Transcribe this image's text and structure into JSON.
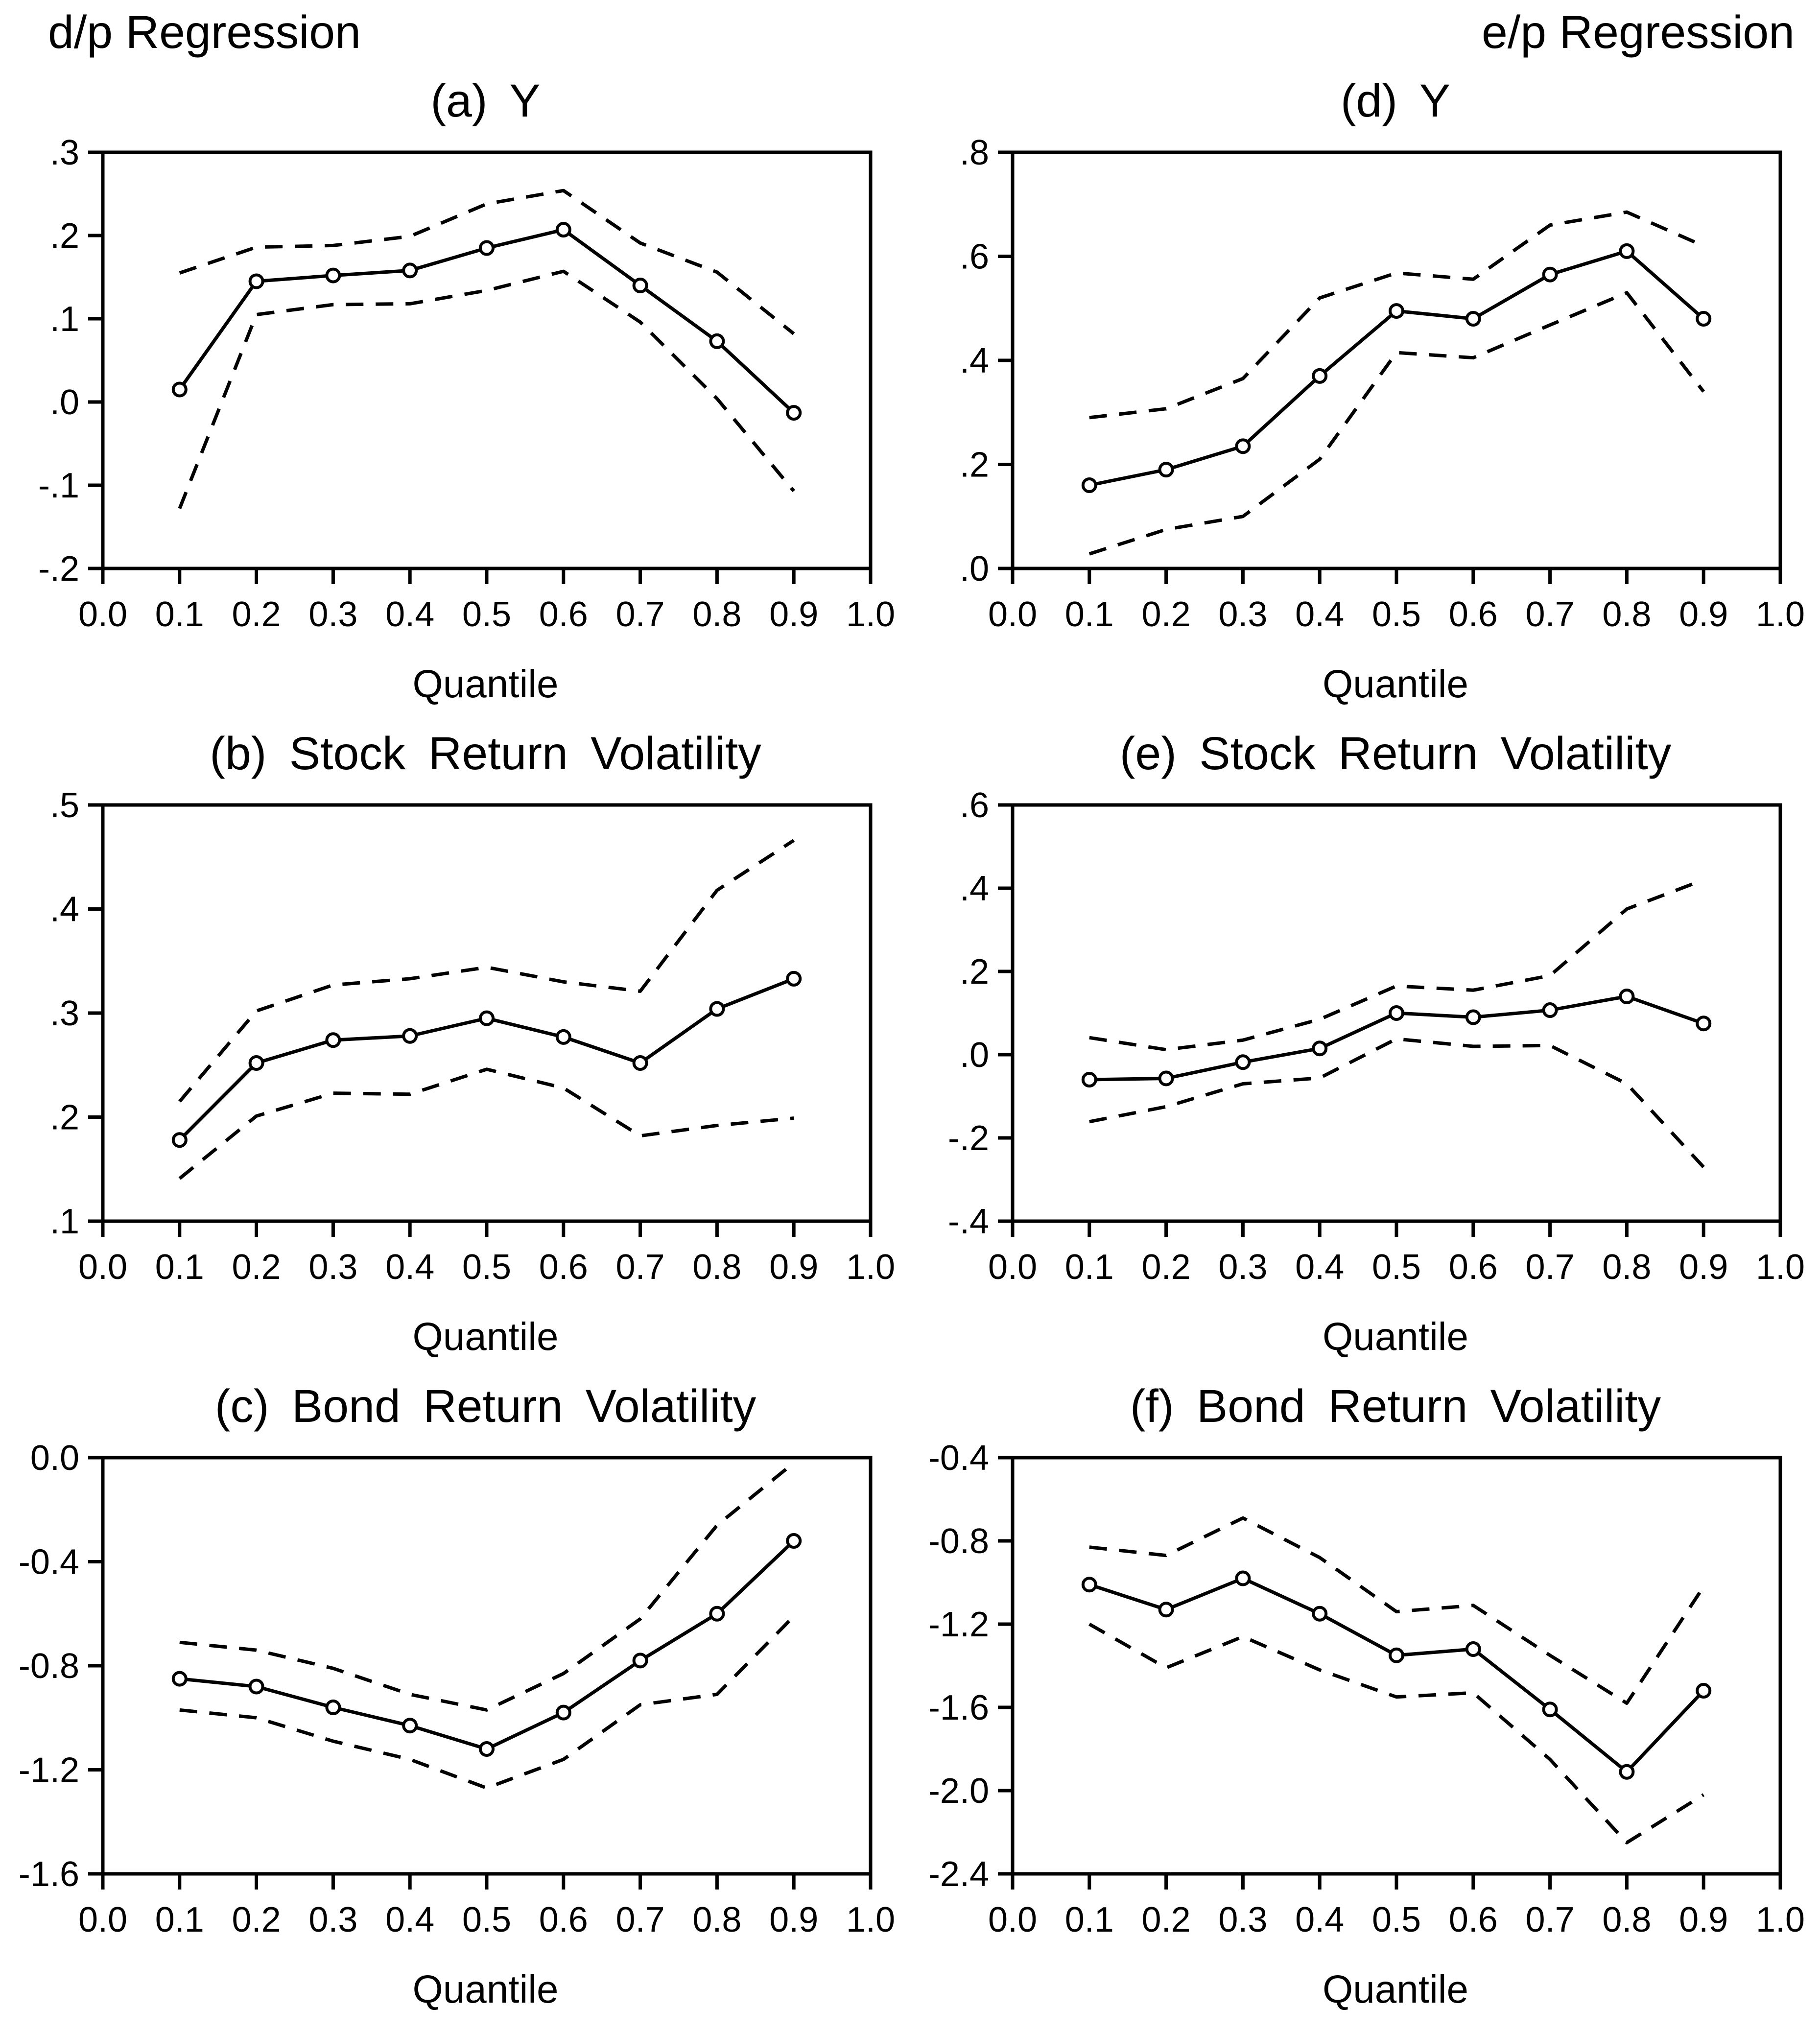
{
  "page": {
    "background": "#ffffff",
    "text_color": "#000000",
    "line_color": "#000000"
  },
  "header": {
    "left_label": "d/p Regression",
    "right_label": "e/p Regression"
  },
  "chart_data": [
    {
      "panel": "a",
      "type": "line",
      "title": "(a) Y",
      "xlabel": "Quantile",
      "grid": false,
      "legend": "none",
      "x": [
        0.1,
        0.2,
        0.3,
        0.4,
        0.5,
        0.6,
        0.7,
        0.8,
        0.9
      ],
      "xlim": [
        0.0,
        1.0
      ],
      "xticks": [
        {
          "value": 0.0,
          "label": "0.0"
        },
        {
          "value": 0.1,
          "label": "0.1"
        },
        {
          "value": 0.2,
          "label": "0.2"
        },
        {
          "value": 0.3,
          "label": "0.3"
        },
        {
          "value": 0.4,
          "label": "0.4"
        },
        {
          "value": 0.5,
          "label": "0.5"
        },
        {
          "value": 0.6,
          "label": "0.6"
        },
        {
          "value": 0.7,
          "label": "0.7"
        },
        {
          "value": 0.8,
          "label": "0.8"
        },
        {
          "value": 0.9,
          "label": "0.9"
        },
        {
          "value": 1.0,
          "label": "1.0"
        }
      ],
      "ylim": [
        -0.2,
        0.3
      ],
      "yticks": [
        {
          "value": 0.3,
          "label": ".3"
        },
        {
          "value": 0.2,
          "label": ".2"
        },
        {
          "value": 0.1,
          "label": ".1"
        },
        {
          "value": 0.0,
          "label": ".0"
        },
        {
          "value": -0.1,
          "label": "-.1"
        },
        {
          "value": -0.2,
          "label": "-.2"
        }
      ],
      "series": [
        {
          "name": "quantile-estimate",
          "line": "solid",
          "marker": "circle",
          "values": [
            0.015,
            0.145,
            0.152,
            0.158,
            0.185,
            0.207,
            0.14,
            0.073,
            -0.013
          ]
        },
        {
          "name": "upper-confidence-band",
          "line": "dashed",
          "marker": "none",
          "values": [
            0.155,
            0.186,
            0.188,
            0.199,
            0.238,
            0.254,
            0.191,
            0.156,
            0.082
          ]
        },
        {
          "name": "lower-confidence-band",
          "line": "dashed",
          "marker": "none",
          "values": [
            -0.128,
            0.105,
            0.117,
            0.118,
            0.134,
            0.157,
            0.096,
            0.004,
            -0.107
          ]
        }
      ]
    },
    {
      "panel": "b",
      "type": "line",
      "title": "(b) Stock Return Volatility",
      "xlabel": "Quantile",
      "grid": false,
      "legend": "none",
      "x": [
        0.1,
        0.2,
        0.3,
        0.4,
        0.5,
        0.6,
        0.7,
        0.8,
        0.9
      ],
      "xlim": [
        0.0,
        1.0
      ],
      "xticks": [
        {
          "value": 0.0,
          "label": "0.0"
        },
        {
          "value": 0.1,
          "label": "0.1"
        },
        {
          "value": 0.2,
          "label": "0.2"
        },
        {
          "value": 0.3,
          "label": "0.3"
        },
        {
          "value": 0.4,
          "label": "0.4"
        },
        {
          "value": 0.5,
          "label": "0.5"
        },
        {
          "value": 0.6,
          "label": "0.6"
        },
        {
          "value": 0.7,
          "label": "0.7"
        },
        {
          "value": 0.8,
          "label": "0.8"
        },
        {
          "value": 0.9,
          "label": "0.9"
        },
        {
          "value": 1.0,
          "label": "1.0"
        }
      ],
      "ylim": [
        0.1,
        0.5
      ],
      "yticks": [
        {
          "value": 0.5,
          "label": ".5"
        },
        {
          "value": 0.4,
          "label": ".4"
        },
        {
          "value": 0.3,
          "label": ".3"
        },
        {
          "value": 0.2,
          "label": ".2"
        },
        {
          "value": 0.1,
          "label": ".1"
        }
      ],
      "series": [
        {
          "name": "quantile-estimate",
          "line": "solid",
          "marker": "circle",
          "values": [
            0.178,
            0.252,
            0.274,
            0.278,
            0.295,
            0.277,
            0.252,
            0.304,
            0.333
          ]
        },
        {
          "name": "upper-confidence-band",
          "line": "dashed",
          "marker": "none",
          "values": [
            0.215,
            0.302,
            0.327,
            0.333,
            0.344,
            0.33,
            0.321,
            0.418,
            0.466
          ]
        },
        {
          "name": "lower-confidence-band",
          "line": "dashed",
          "marker": "none",
          "values": [
            0.141,
            0.201,
            0.223,
            0.222,
            0.246,
            0.228,
            0.182,
            0.192,
            0.199
          ]
        }
      ]
    },
    {
      "panel": "c",
      "type": "line",
      "title": "(c) Bond Return Volatility",
      "xlabel": "Quantile",
      "grid": false,
      "legend": "none",
      "x": [
        0.1,
        0.2,
        0.3,
        0.4,
        0.5,
        0.6,
        0.7,
        0.8,
        0.9
      ],
      "xlim": [
        0.0,
        1.0
      ],
      "xticks": [
        {
          "value": 0.0,
          "label": "0.0"
        },
        {
          "value": 0.1,
          "label": "0.1"
        },
        {
          "value": 0.2,
          "label": "0.2"
        },
        {
          "value": 0.3,
          "label": "0.3"
        },
        {
          "value": 0.4,
          "label": "0.4"
        },
        {
          "value": 0.5,
          "label": "0.5"
        },
        {
          "value": 0.6,
          "label": "0.6"
        },
        {
          "value": 0.7,
          "label": "0.7"
        },
        {
          "value": 0.8,
          "label": "0.8"
        },
        {
          "value": 0.9,
          "label": "0.9"
        },
        {
          "value": 1.0,
          "label": "1.0"
        }
      ],
      "ylim": [
        -1.6,
        0.0
      ],
      "yticks": [
        {
          "value": 0.0,
          "label": "0.0"
        },
        {
          "value": -0.4,
          "label": "-0.4"
        },
        {
          "value": -0.8,
          "label": "-0.8"
        },
        {
          "value": -1.2,
          "label": "-1.2"
        },
        {
          "value": -1.6,
          "label": "-1.6"
        }
      ],
      "series": [
        {
          "name": "quantile-estimate",
          "line": "solid",
          "marker": "circle",
          "values": [
            -0.85,
            -0.88,
            -0.96,
            -1.03,
            -1.12,
            -0.98,
            -0.78,
            -0.6,
            -0.32
          ]
        },
        {
          "name": "upper-confidence-band",
          "line": "dashed",
          "marker": "none",
          "values": [
            -0.71,
            -0.74,
            -0.81,
            -0.91,
            -0.97,
            -0.83,
            -0.62,
            -0.26,
            -0.02
          ]
        },
        {
          "name": "lower-confidence-band",
          "line": "dashed",
          "marker": "none",
          "values": [
            -0.97,
            -1.0,
            -1.09,
            -1.16,
            -1.27,
            -1.16,
            -0.95,
            -0.91,
            -0.61
          ]
        }
      ]
    },
    {
      "panel": "d",
      "type": "line",
      "title": "(d) Y",
      "xlabel": "Quantile",
      "grid": false,
      "legend": "none",
      "x": [
        0.1,
        0.2,
        0.3,
        0.4,
        0.5,
        0.6,
        0.7,
        0.8,
        0.9
      ],
      "xlim": [
        0.0,
        1.0
      ],
      "xticks": [
        {
          "value": 0.0,
          "label": "0.0"
        },
        {
          "value": 0.1,
          "label": "0.1"
        },
        {
          "value": 0.2,
          "label": "0.2"
        },
        {
          "value": 0.3,
          "label": "0.3"
        },
        {
          "value": 0.4,
          "label": "0.4"
        },
        {
          "value": 0.5,
          "label": "0.5"
        },
        {
          "value": 0.6,
          "label": "0.6"
        },
        {
          "value": 0.7,
          "label": "0.7"
        },
        {
          "value": 0.8,
          "label": "0.8"
        },
        {
          "value": 0.9,
          "label": "0.9"
        },
        {
          "value": 1.0,
          "label": "1.0"
        }
      ],
      "ylim": [
        0.0,
        0.8
      ],
      "yticks": [
        {
          "value": 0.8,
          "label": ".8"
        },
        {
          "value": 0.6,
          "label": ".6"
        },
        {
          "value": 0.4,
          "label": ".4"
        },
        {
          "value": 0.2,
          "label": ".2"
        },
        {
          "value": 0.0,
          "label": ".0"
        }
      ],
      "series": [
        {
          "name": "quantile-estimate",
          "line": "solid",
          "marker": "circle",
          "values": [
            0.16,
            0.19,
            0.235,
            0.37,
            0.495,
            0.48,
            0.565,
            0.61,
            0.48
          ]
        },
        {
          "name": "upper-confidence-band",
          "line": "dashed",
          "marker": "none",
          "values": [
            0.29,
            0.307,
            0.365,
            0.52,
            0.568,
            0.556,
            0.66,
            0.685,
            0.62
          ]
        },
        {
          "name": "lower-confidence-band",
          "line": "dashed",
          "marker": "none",
          "values": [
            0.028,
            0.075,
            0.1,
            0.21,
            0.415,
            0.405,
            0.468,
            0.53,
            0.34
          ]
        }
      ]
    },
    {
      "panel": "e",
      "type": "line",
      "title": "(e) Stock Return Volatility",
      "xlabel": "Quantile",
      "grid": false,
      "legend": "none",
      "x": [
        0.1,
        0.2,
        0.3,
        0.4,
        0.5,
        0.6,
        0.7,
        0.8,
        0.9
      ],
      "xlim": [
        0.0,
        1.0
      ],
      "xticks": [
        {
          "value": 0.0,
          "label": "0.0"
        },
        {
          "value": 0.1,
          "label": "0.1"
        },
        {
          "value": 0.2,
          "label": "0.2"
        },
        {
          "value": 0.3,
          "label": "0.3"
        },
        {
          "value": 0.4,
          "label": "0.4"
        },
        {
          "value": 0.5,
          "label": "0.5"
        },
        {
          "value": 0.6,
          "label": "0.6"
        },
        {
          "value": 0.7,
          "label": "0.7"
        },
        {
          "value": 0.8,
          "label": "0.8"
        },
        {
          "value": 0.9,
          "label": "0.9"
        },
        {
          "value": 1.0,
          "label": "1.0"
        }
      ],
      "ylim": [
        -0.4,
        0.6
      ],
      "yticks": [
        {
          "value": 0.6,
          "label": ".6"
        },
        {
          "value": 0.4,
          "label": ".4"
        },
        {
          "value": 0.2,
          "label": ".2"
        },
        {
          "value": 0.0,
          "label": ".0"
        },
        {
          "value": -0.2,
          "label": "-.2"
        },
        {
          "value": -0.4,
          "label": "-.4"
        }
      ],
      "series": [
        {
          "name": "quantile-estimate",
          "line": "solid",
          "marker": "circle",
          "values": [
            -0.06,
            -0.057,
            -0.018,
            0.015,
            0.1,
            0.09,
            0.107,
            0.14,
            0.075
          ]
        },
        {
          "name": "upper-confidence-band",
          "line": "dashed",
          "marker": "none",
          "values": [
            0.041,
            0.012,
            0.035,
            0.085,
            0.165,
            0.155,
            0.19,
            0.35,
            0.42
          ]
        },
        {
          "name": "lower-confidence-band",
          "line": "dashed",
          "marker": "none",
          "values": [
            -0.161,
            -0.125,
            -0.07,
            -0.056,
            0.038,
            0.02,
            0.022,
            -0.07,
            -0.27
          ]
        }
      ]
    },
    {
      "panel": "f",
      "type": "line",
      "title": "(f) Bond Return Volatility",
      "xlabel": "Quantile",
      "grid": false,
      "legend": "none",
      "x": [
        0.1,
        0.2,
        0.3,
        0.4,
        0.5,
        0.6,
        0.7,
        0.8,
        0.9
      ],
      "xlim": [
        0.0,
        1.0
      ],
      "xticks": [
        {
          "value": 0.0,
          "label": "0.0"
        },
        {
          "value": 0.1,
          "label": "0.1"
        },
        {
          "value": 0.2,
          "label": "0.2"
        },
        {
          "value": 0.3,
          "label": "0.3"
        },
        {
          "value": 0.4,
          "label": "0.4"
        },
        {
          "value": 0.5,
          "label": "0.5"
        },
        {
          "value": 0.6,
          "label": "0.6"
        },
        {
          "value": 0.7,
          "label": "0.7"
        },
        {
          "value": 0.8,
          "label": "0.8"
        },
        {
          "value": 0.9,
          "label": "0.9"
        },
        {
          "value": 1.0,
          "label": "1.0"
        }
      ],
      "ylim": [
        -2.4,
        -0.4
      ],
      "yticks": [
        {
          "value": -0.4,
          "label": "-0.4"
        },
        {
          "value": -0.8,
          "label": "-0.8"
        },
        {
          "value": -1.2,
          "label": "-1.2"
        },
        {
          "value": -1.6,
          "label": "-1.6"
        },
        {
          "value": -2.0,
          "label": "-2.0"
        },
        {
          "value": -2.4,
          "label": "-2.4"
        }
      ],
      "series": [
        {
          "name": "quantile-estimate",
          "line": "solid",
          "marker": "circle",
          "values": [
            -1.01,
            -1.13,
            -0.98,
            -1.15,
            -1.35,
            -1.32,
            -1.61,
            -1.91,
            -1.52
          ]
        },
        {
          "name": "upper-confidence-band",
          "line": "dashed",
          "marker": "none",
          "values": [
            -0.83,
            -0.87,
            -0.69,
            -0.88,
            -1.14,
            -1.11,
            -1.35,
            -1.58,
            -1.02
          ]
        },
        {
          "name": "lower-confidence-band",
          "line": "dashed",
          "marker": "none",
          "values": [
            -1.2,
            -1.41,
            -1.26,
            -1.42,
            -1.55,
            -1.53,
            -1.85,
            -2.25,
            -2.02
          ]
        }
      ]
    }
  ]
}
